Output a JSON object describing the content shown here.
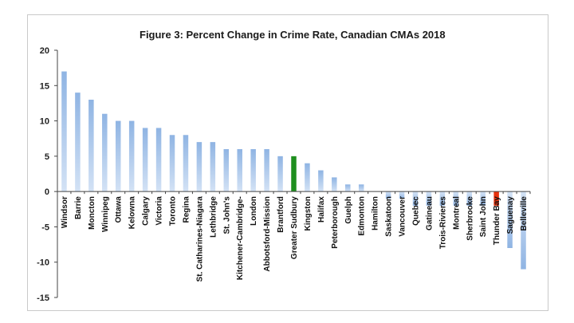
{
  "chart_data": {
    "type": "bar",
    "title": "Figure 3: Percent Change in Crime Rate, Canadian CMAs 2018",
    "xlabel": "",
    "ylabel": "",
    "ylim": [
      -15,
      20
    ],
    "yticks": [
      20,
      15,
      10,
      5,
      0,
      -5,
      -10,
      -15
    ],
    "grid": false,
    "legend": "none",
    "categories": [
      "Windsor",
      "Barrie",
      "Moncton",
      "Winnipeg",
      "Ottawa",
      "Kelowna",
      "Calgary",
      "Victoria",
      "Toronto",
      "Regina",
      "St. Catharines-Niagara",
      "Lethbridge",
      "St. John's",
      "Kitchener-Cambridge-",
      "London",
      "Abbotsford-Mission",
      "Brantford",
      "Greater Sudbury",
      "Kingston",
      "Halifax",
      "Peterborough",
      "Guelph",
      "Edmonton",
      "Hamilton",
      "Saskatoon",
      "Vancouver",
      "Quebec",
      "Gatineau",
      "Trois-Rivieres",
      "Montreal",
      "Sherbrooke",
      "Saint John",
      "Thunder Bay",
      "Saguenay",
      "Belleville"
    ],
    "values": [
      17,
      14,
      13,
      11,
      10,
      10,
      9,
      9,
      8,
      8,
      7,
      7,
      6,
      6,
      6,
      6,
      5,
      5,
      4,
      3,
      2,
      1,
      1,
      0,
      -1,
      -1,
      -2,
      -2,
      -2,
      -2,
      -2,
      -2,
      -2,
      -8,
      -11
    ],
    "colors": {
      "default": "#8fb4e3",
      "default_light": "#d3e2f5",
      "highlight_green": "#1f8f1f",
      "highlight_red": "#e8320c"
    },
    "highlights": {
      "Greater Sudbury": "highlight_green",
      "Thunder Bay": "highlight_red"
    }
  }
}
